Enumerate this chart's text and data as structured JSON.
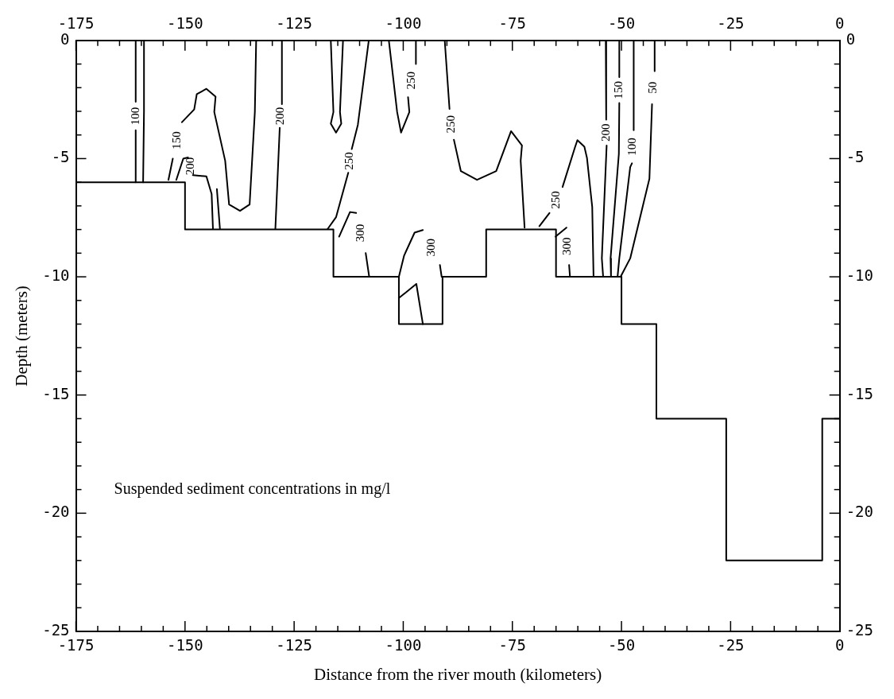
{
  "chart_data": {
    "type": "line",
    "xlabel": "Distance from the river mouth (kilometers)",
    "ylabel": "Depth (meters)",
    "marker": "none",
    "line_style": "solid",
    "xlim": [
      -175,
      0
    ],
    "x2lim": [
      -175,
      0
    ],
    "ylim": [
      -25,
      0
    ],
    "y2lim": [
      -25,
      0
    ],
    "xticks": [
      -175,
      {
        "value": -170,
        "label": null
      },
      {
        "value": -165,
        "label": null
      },
      {
        "value": -160,
        "label": null
      },
      {
        "value": -155,
        "label": null
      },
      -150,
      {
        "value": -145,
        "label": null
      },
      {
        "value": -140,
        "label": null
      },
      {
        "value": -135,
        "label": null
      },
      {
        "value": -130,
        "label": null
      },
      -125,
      {
        "value": -120,
        "label": null
      },
      {
        "value": -115,
        "label": null
      },
      {
        "value": -110,
        "label": null
      },
      {
        "value": -105,
        "label": null
      },
      -100,
      {
        "value": -95,
        "label": null
      },
      {
        "value": -90,
        "label": null
      },
      {
        "value": -85,
        "label": null
      },
      {
        "value": -80,
        "label": null
      },
      -75,
      {
        "value": -70,
        "label": null
      },
      {
        "value": -65,
        "label": null
      },
      {
        "value": -60,
        "label": null
      },
      {
        "value": -55,
        "label": null
      },
      -50,
      {
        "value": -45,
        "label": null
      },
      {
        "value": -40,
        "label": null
      },
      {
        "value": -35,
        "label": null
      },
      {
        "value": -30,
        "label": null
      },
      -25,
      {
        "value": -20,
        "label": null
      },
      {
        "value": -15,
        "label": null
      },
      {
        "value": -10,
        "label": null
      },
      {
        "value": -5,
        "label": null
      },
      0
    ],
    "x2ticks": [
      -175,
      {
        "value": -170,
        "label": null
      },
      {
        "value": -165,
        "label": null
      },
      {
        "value": -160,
        "label": null
      },
      {
        "value": -155,
        "label": null
      },
      -150,
      {
        "value": -145,
        "label": null
      },
      {
        "value": -140,
        "label": null
      },
      {
        "value": -135,
        "label": null
      },
      {
        "value": -130,
        "label": null
      },
      -125,
      {
        "value": -120,
        "label": null
      },
      {
        "value": -115,
        "label": null
      },
      {
        "value": -110,
        "label": null
      },
      {
        "value": -105,
        "label": null
      },
      -100,
      {
        "value": -95,
        "label": null
      },
      {
        "value": -90,
        "label": null
      },
      {
        "value": -85,
        "label": null
      },
      {
        "value": -80,
        "label": null
      },
      -75,
      {
        "value": -70,
        "label": null
      },
      {
        "value": -65,
        "label": null
      },
      {
        "value": -60,
        "label": null
      },
      {
        "value": -55,
        "label": null
      },
      -50,
      {
        "value": -45,
        "label": null
      },
      {
        "value": -40,
        "label": null
      },
      {
        "value": -35,
        "label": null
      },
      {
        "value": -30,
        "label": null
      },
      -25,
      {
        "value": -20,
        "label": null
      },
      {
        "value": -15,
        "label": null
      },
      {
        "value": -10,
        "label": null
      },
      {
        "value": -5,
        "label": null
      },
      0
    ],
    "yticks": [
      0,
      {
        "value": -1,
        "label": null
      },
      {
        "value": -2,
        "label": null
      },
      {
        "value": -3,
        "label": null
      },
      {
        "value": -4,
        "label": null
      },
      -5,
      {
        "value": -6,
        "label": null
      },
      {
        "value": -7,
        "label": null
      },
      {
        "value": -8,
        "label": null
      },
      {
        "value": -9,
        "label": null
      },
      -10,
      {
        "value": -11,
        "label": null
      },
      {
        "value": -12,
        "label": null
      },
      {
        "value": -13,
        "label": null
      },
      {
        "value": -14,
        "label": null
      },
      -15,
      {
        "value": -16,
        "label": null
      },
      {
        "value": -17,
        "label": null
      },
      {
        "value": -18,
        "label": null
      },
      {
        "value": -19,
        "label": null
      },
      -20,
      {
        "value": -21,
        "label": null
      },
      {
        "value": -22,
        "label": null
      },
      {
        "value": -23,
        "label": null
      },
      {
        "value": -24,
        "label": null
      },
      -25
    ],
    "y2ticks": [
      0,
      {
        "value": -1,
        "label": null
      },
      {
        "value": -2,
        "label": null
      },
      {
        "value": -3,
        "label": null
      },
      {
        "value": -4,
        "label": null
      },
      -5,
      {
        "value": -6,
        "label": null
      },
      {
        "value": -7,
        "label": null
      },
      {
        "value": -8,
        "label": null
      },
      {
        "value": -9,
        "label": null
      },
      -10,
      {
        "value": -11,
        "label": null
      },
      {
        "value": -12,
        "label": null
      },
      {
        "value": -13,
        "label": null
      },
      {
        "value": -14,
        "label": null
      },
      -15,
      {
        "value": -16,
        "label": null
      },
      {
        "value": -17,
        "label": null
      },
      {
        "value": -18,
        "label": null
      },
      {
        "value": -19,
        "label": null
      },
      -20,
      {
        "value": -21,
        "label": null
      },
      {
        "value": -22,
        "label": null
      },
      {
        "value": -23,
        "label": null
      },
      {
        "value": -24,
        "label": null
      },
      -25
    ],
    "series": [
      {
        "type": "step",
        "color": "#000000",
        "x": [
          -175,
          -150,
          -116,
          -101,
          -91,
          -81,
          -65,
          -50,
          -42,
          -26,
          -4,
          0
        ],
        "values": [
          -6,
          -8,
          -10,
          -12,
          -10,
          -8,
          -10,
          -12,
          -16,
          -22,
          -16,
          -16
        ]
      },
      {
        "name": "100",
        "color": "#000000",
        "x": [
          -161.3,
          -161.3,
          null,
          -161.3,
          -161.3
        ],
        "values": [
          0,
          -2.6,
          null,
          -3.8,
          -6
        ]
      },
      {
        "color": "#000000",
        "x": [
          -159.4,
          -159.4,
          -159.6
        ],
        "values": [
          0,
          -3,
          -6
        ]
      },
      {
        "name": "150",
        "color": "#000000",
        "x": [
          -133.7,
          -134.0,
          -135.2,
          -137.4,
          -139.9,
          -140.8,
          -143.3,
          -143.0,
          -145.1,
          -147.3,
          -147.9,
          -150.7,
          null,
          -152.8,
          -153.8
        ],
        "values": [
          0,
          -3.03,
          -6.94,
          -7.21,
          -6.94,
          -5.09,
          -3.03,
          -2.38,
          -2.05,
          -2.27,
          -2.92,
          -3.46,
          null,
          -5.0,
          -5.9
        ]
      },
      {
        "name": "200",
        "color": "#000000",
        "x": [
          -152.0,
          -150.4,
          -149.3,
          null,
          -148.2,
          -145.1,
          -143.9,
          -143.6
        ],
        "values": [
          -5.9,
          -5.0,
          -4.95,
          null,
          -5.7,
          -5.75,
          -6.5,
          -7.97
        ]
      },
      {
        "color": "#000000",
        "x": [
          -142.7,
          -142.0
        ],
        "values": [
          -6.29,
          -7.97
        ]
      },
      {
        "name": "200",
        "color": "#000000",
        "x": [
          -127.8,
          -127.8,
          null,
          -128.3,
          -129.3
        ],
        "values": [
          0,
          -2.7,
          null,
          -3.7,
          -7.97
        ]
      },
      {
        "color": "#000000",
        "x": [
          -116.6,
          -116.0,
          -116.6,
          -115.4,
          -114.2,
          -114.5,
          -113.8
        ],
        "values": [
          0,
          -3.03,
          -3.52,
          -3.9,
          -3.52,
          -3.03,
          0
        ]
      },
      {
        "name": "250",
        "color": "#000000",
        "x": [
          -107.9,
          -110.4,
          -111.8,
          null,
          -112.6,
          -115.4,
          -117.3
        ],
        "values": [
          0,
          -3.57,
          -4.6,
          null,
          -5.6,
          -7.48,
          -7.97
        ]
      },
      {
        "name": "300",
        "color": "#000000",
        "x": [
          -114.7,
          -112.2,
          -110.8,
          null,
          -108.6,
          -107.8
        ],
        "values": [
          -8.3,
          -7.26,
          -7.3,
          null,
          -9.0,
          -10
        ]
      },
      {
        "name": "250",
        "color": "#000000",
        "x": [
          -103.3,
          -101.4,
          -100.5,
          -98.6,
          -98.9,
          null,
          -97.1,
          -97.1
        ],
        "values": [
          0,
          -3.03,
          -3.9,
          -3.03,
          -2.4,
          null,
          -1.0,
          0
        ]
      },
      {
        "name": "250",
        "color": "#000000",
        "x": [
          -90.5,
          -89.4,
          null,
          -88.4,
          -86.8,
          -83.1,
          -78.7,
          -75.3,
          -72.8,
          -73.1,
          -72.2
        ],
        "values": [
          0,
          -2.9,
          null,
          -4.2,
          -5.53,
          -5.9,
          -5.53,
          -3.84,
          -4.44,
          -5.09,
          -7.92
        ]
      },
      {
        "name": "300",
        "color": "#000000",
        "x": [
          -101,
          -99.8,
          -97.4,
          -95.5,
          null,
          -91.6,
          -91.2
        ],
        "values": [
          -10,
          -9.1,
          -8.13,
          -8.02,
          null,
          -9.5,
          -10
        ]
      },
      {
        "color": "#000000",
        "x": [
          -101,
          -97,
          -95.5
        ],
        "values": [
          -10.9,
          -10.3,
          -12
        ]
      },
      {
        "name": "250",
        "color": "#000000",
        "x": [
          -68.8,
          -66.5,
          null,
          -63.5,
          -60.7,
          -60.1,
          -58.5,
          -57.9,
          -56.7,
          -56.4
        ],
        "values": [
          -7.86,
          -7.3,
          null,
          -6.2,
          -4.55,
          -4.22,
          -4.5,
          -4.98,
          -7.05,
          -10
        ]
      },
      {
        "name": "300",
        "color": "#000000",
        "x": [
          -65.1,
          -62.6,
          null,
          -62.0,
          -61.8
        ],
        "values": [
          -8.3,
          -7.92,
          null,
          -9.5,
          -10
        ]
      },
      {
        "name": "200",
        "color": "#000000",
        "x": [
          -53.6,
          -53.5,
          null,
          -53.4,
          -54.5,
          -54.2
        ],
        "values": [
          0,
          -3.35,
          null,
          -4.45,
          -9.22,
          -10
        ]
      },
      {
        "name": "150",
        "color": "#000000",
        "x": [
          -50.5,
          -50.5,
          null,
          -50.5,
          -50.6,
          -52.5,
          -52.4
        ],
        "values": [
          0,
          -1.55,
          null,
          -2.65,
          -4.8,
          -9.22,
          -10
        ]
      },
      {
        "name": "100",
        "color": "#000000",
        "x": [
          -47.2,
          -47.2,
          null,
          -47.6,
          -48.0,
          -50.5,
          -50.9
        ],
        "values": [
          0,
          -3.8,
          null,
          -5.2,
          -5.36,
          -9.22,
          -10
        ]
      },
      {
        "name": "50",
        "color": "#000000",
        "x": [
          -42.4,
          -42.4,
          null,
          -43.0,
          -43.6,
          -48.0,
          -50.2
        ],
        "values": [
          0,
          -1.3,
          null,
          -2.7,
          -5.85,
          -9.22,
          -10
        ]
      }
    ],
    "annotations": [
      "Suspended sediment concentrations in mg/l"
    ]
  }
}
